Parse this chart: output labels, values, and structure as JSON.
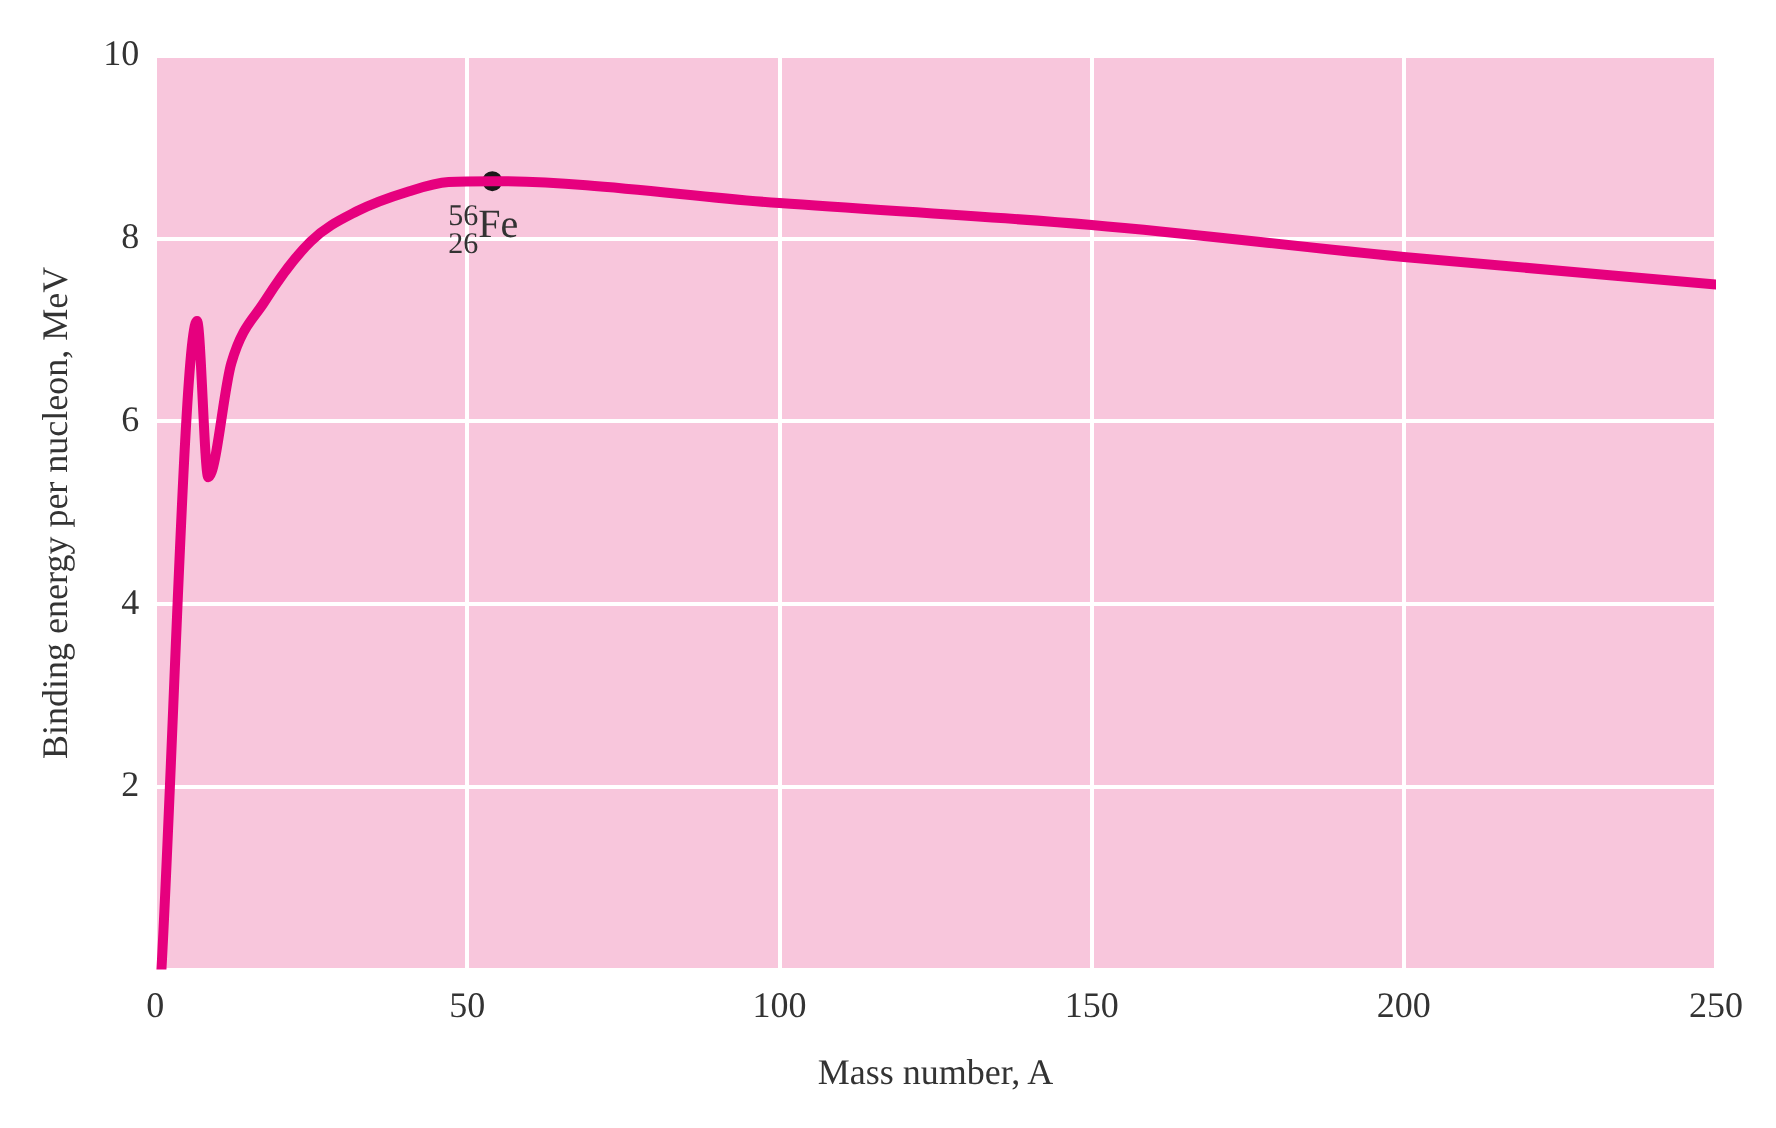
{
  "chart_data": {
    "type": "line",
    "xlabel": "Mass number, A",
    "ylabel": "Binding energy per nucleon, MeV",
    "xlim": [
      0,
      250
    ],
    "xticks": [
      0,
      50,
      100,
      150,
      200,
      250
    ],
    "ylim": [
      0,
      10
    ],
    "yticks": [
      {
        "value": 0,
        "label": null
      },
      2,
      4,
      6,
      8,
      10
    ],
    "grid": true,
    "legend": false,
    "marker": "none",
    "line_style": "solid",
    "series": [
      {
        "color": "#e6007e",
        "x": [
          1,
          6.7,
          8.5,
          12.2,
          17.5,
          24.9,
          32.3,
          40.7,
          47,
          54,
          100,
          150,
          200,
          250
        ],
        "values": [
          0,
          7.1,
          5.39,
          6.64,
          7.31,
          7.97,
          8.3,
          8.52,
          8.62,
          8.63,
          8.39,
          8.15,
          7.8,
          7.5
        ]
      },
      {
        "type": "scatter",
        "marker": "circle",
        "color": "#1a1a1a",
        "x": [
          54
        ],
        "values": [
          8.63
        ]
      }
    ],
    "annotations": [
      {
        "text": "$^{56}$$_{26}$Fe",
        "x": 54,
        "y": 8.63
      }
    ]
  }
}
